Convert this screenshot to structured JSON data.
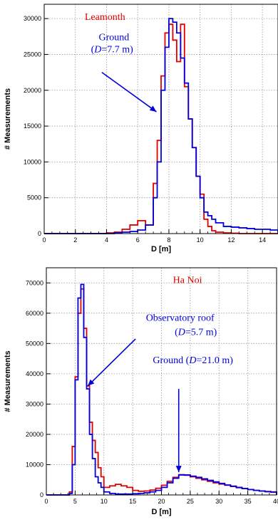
{
  "chart_data": [
    {
      "type": "histogram",
      "ylabel": "# Measurements",
      "xlabel": "D [m]",
      "xlim": [
        0,
        15
      ],
      "ylim": [
        0,
        32000
      ],
      "xticks": [
        "0",
        "2",
        "4",
        "6",
        "8",
        "10",
        "12",
        "14"
      ],
      "yticks": [
        "0",
        "5000",
        "10000",
        "15000",
        "20000",
        "25000",
        "30000"
      ],
      "grid": true,
      "annotations": [
        {
          "text": "Leamonth",
          "color": "#e00000"
        },
        {
          "text": "Ground",
          "color": "#0000dd"
        },
        {
          "text": "(D=7.7 m)",
          "color": "#0000dd"
        }
      ],
      "arrows": [
        {
          "from": [
            3.7,
            22500
          ],
          "to": [
            7.2,
            17000
          ]
        }
      ],
      "bin_edges": [
        0,
        0.5,
        1,
        1.5,
        2,
        2.5,
        3,
        3.5,
        4,
        4.5,
        5,
        5.5,
        6,
        6.5,
        7,
        7.25,
        7.5,
        7.75,
        8,
        8.25,
        8.5,
        8.75,
        9,
        9.25,
        9.5,
        9.75,
        10,
        10.25,
        10.5,
        10.75,
        11,
        11.5,
        12,
        12.5,
        13,
        13.5,
        14,
        14.5,
        15
      ],
      "series": [
        {
          "color": "#e00000",
          "values": [
            0,
            0,
            0,
            0,
            0,
            0,
            0,
            0,
            100,
            200,
            600,
            1200,
            1800,
            1200,
            7000,
            13000,
            22000,
            28000,
            29200,
            27000,
            24000,
            29200,
            20500,
            16000,
            12000,
            8000,
            5500,
            2000,
            1000,
            400,
            200,
            100,
            50,
            0,
            0,
            0,
            0,
            0
          ]
        },
        {
          "color": "#0000dd",
          "values": [
            0,
            0,
            0,
            0,
            0,
            0,
            0,
            0,
            0,
            100,
            200,
            300,
            500,
            1200,
            5000,
            10000,
            20000,
            26000,
            30000,
            29500,
            28000,
            24500,
            21000,
            16000,
            12000,
            8000,
            5000,
            3000,
            2500,
            2000,
            1500,
            1000,
            900,
            800,
            700,
            600,
            600,
            500
          ]
        }
      ]
    },
    {
      "type": "histogram",
      "ylabel": "# Measurements",
      "xlabel": "D [m]",
      "xlim": [
        0,
        40
      ],
      "ylim": [
        0,
        75000
      ],
      "xticks": [
        "0",
        "5",
        "10",
        "15",
        "20",
        "25",
        "30",
        "35",
        "40"
      ],
      "yticks": [
        "0",
        "10000",
        "20000",
        "30000",
        "40000",
        "50000",
        "60000",
        "70000"
      ],
      "grid": true,
      "annotations": [
        {
          "text": "Ha Noi",
          "color": "#e00000"
        },
        {
          "text": "Observatory roof",
          "color": "#0000dd"
        },
        {
          "text": "(D=5.7 m)",
          "color": "#0000dd"
        },
        {
          "text": "Ground (D=21.0 m)",
          "color": "#0000dd"
        }
      ],
      "arrows": [
        {
          "from": [
            15.5,
            51500
          ],
          "to": [
            7.2,
            36000
          ]
        },
        {
          "from": [
            23,
            35000
          ],
          "to": [
            23,
            7500
          ]
        }
      ],
      "bin_edges": [
        0,
        1,
        2,
        3,
        4,
        4.5,
        5,
        5.5,
        6,
        6.5,
        7,
        7.5,
        8,
        8.5,
        9,
        9.5,
        10,
        11,
        12,
        13,
        14,
        15,
        16,
        17,
        18,
        19,
        20,
        21,
        22,
        23,
        24,
        25,
        26,
        27,
        28,
        29,
        30,
        31,
        32,
        33,
        34,
        35,
        36,
        37,
        38,
        39,
        40
      ],
      "series": [
        {
          "color": "#e00000",
          "values": [
            0,
            0,
            0,
            0,
            1000,
            16000,
            39000,
            60000,
            68000,
            55000,
            36000,
            24000,
            18000,
            14000,
            9000,
            6000,
            2500,
            3000,
            3500,
            3000,
            2500,
            1500,
            1200,
            1300,
            1600,
            2200,
            3200,
            4500,
            5800,
            6700,
            6500,
            6000,
            5500,
            5000,
            4500,
            4000,
            3600,
            3200,
            2800,
            2400,
            2100,
            1800,
            1500,
            1300,
            1100,
            900
          ]
        },
        {
          "color": "#0000dd",
          "values": [
            0,
            0,
            0,
            0,
            500,
            10000,
            38000,
            65000,
            69500,
            52000,
            35000,
            20000,
            12000,
            6000,
            4000,
            2500,
            1000,
            500,
            300,
            300,
            300,
            400,
            500,
            700,
            1000,
            1500,
            2500,
            4000,
            5500,
            6600,
            6600,
            6200,
            5800,
            5300,
            4800,
            4300,
            3800,
            3300,
            2900,
            2500,
            2100,
            1800,
            1500,
            1300,
            1100,
            1000
          ]
        }
      ]
    }
  ],
  "panels": [
    {
      "ann_lines": [
        {
          "text": "Leamonth",
          "color": "#e00000",
          "x": 2.6,
          "y": 29800
        },
        {
          "text": "Ground",
          "color": "#0000dd",
          "x": 3.5,
          "y": 27000
        },
        {
          "text": "(D=7.7 m)",
          "color": "#0000dd",
          "x": 3.0,
          "y": 25300
        }
      ]
    },
    {
      "ann_lines": [
        {
          "text": "Ha Noi",
          "color": "#e00000",
          "x": 22.0,
          "y": 70000
        },
        {
          "text": "Observatory roof",
          "color": "#0000dd",
          "x": 17.3,
          "y": 57500
        },
        {
          "text": "(D=5.7 m)",
          "color": "#0000dd",
          "x": 22.3,
          "y": 52800
        },
        {
          "text": "Ground (D=21.0 m)",
          "color": "#0000dd",
          "x": 18.5,
          "y": 43500
        }
      ]
    }
  ]
}
